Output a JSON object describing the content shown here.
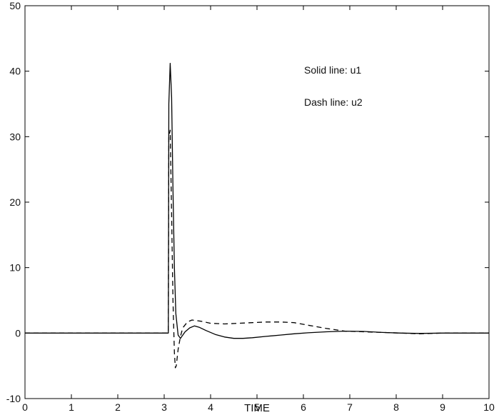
{
  "chart_data": {
    "type": "line",
    "title": "",
    "xlabel": "TIME",
    "ylabel": "",
    "xlim": [
      0,
      10
    ],
    "ylim": [
      -10,
      50
    ],
    "xticks": [
      0,
      1,
      2,
      3,
      4,
      5,
      6,
      7,
      8,
      9,
      10
    ],
    "yticks": [
      -10,
      0,
      10,
      20,
      30,
      40,
      50
    ],
    "grid": false,
    "annotations": [
      "Solid line: u1",
      "Dash line: u2"
    ],
    "series": [
      {
        "name": "u1",
        "style": "solid",
        "color": "#000000",
        "x": [
          0,
          3.09,
          3.1,
          3.13,
          3.16,
          3.19,
          3.22,
          3.25,
          3.3,
          3.35,
          3.45,
          3.55,
          3.65,
          3.75,
          3.9,
          4.1,
          4.3,
          4.5,
          4.7,
          4.9,
          5.2,
          5.5,
          5.8,
          6.1,
          6.5,
          6.9,
          7.3,
          7.7,
          8.1,
          8.5,
          9.0,
          10.0
        ],
        "y": [
          0,
          0,
          35,
          41.2,
          36,
          22,
          10,
          3,
          -0.3,
          -0.8,
          0.2,
          0.8,
          1.1,
          0.9,
          0.4,
          -0.2,
          -0.6,
          -0.8,
          -0.8,
          -0.7,
          -0.5,
          -0.3,
          -0.1,
          0.05,
          0.2,
          0.3,
          0.25,
          0.1,
          0,
          -0.05,
          0,
          0
        ]
      },
      {
        "name": "u2",
        "style": "dashed",
        "color": "#000000",
        "x": [
          0,
          3.09,
          3.1,
          3.13,
          3.16,
          3.19,
          3.22,
          3.24,
          3.26,
          3.3,
          3.35,
          3.4,
          3.5,
          3.6,
          3.8,
          4.0,
          4.3,
          4.6,
          4.9,
          5.2,
          5.5,
          5.8,
          6.1,
          6.5,
          6.9,
          7.3,
          7.7,
          8.1,
          8.5,
          9.0,
          10.0
        ],
        "y": [
          0,
          0,
          30,
          31,
          18,
          5,
          -3,
          -5.3,
          -5,
          -2.5,
          -0.5,
          0.8,
          1.7,
          2.0,
          1.8,
          1.5,
          1.4,
          1.5,
          1.6,
          1.7,
          1.7,
          1.6,
          1.2,
          0.7,
          0.3,
          0.2,
          0.1,
          0,
          -0.1,
          0,
          0
        ]
      }
    ]
  }
}
